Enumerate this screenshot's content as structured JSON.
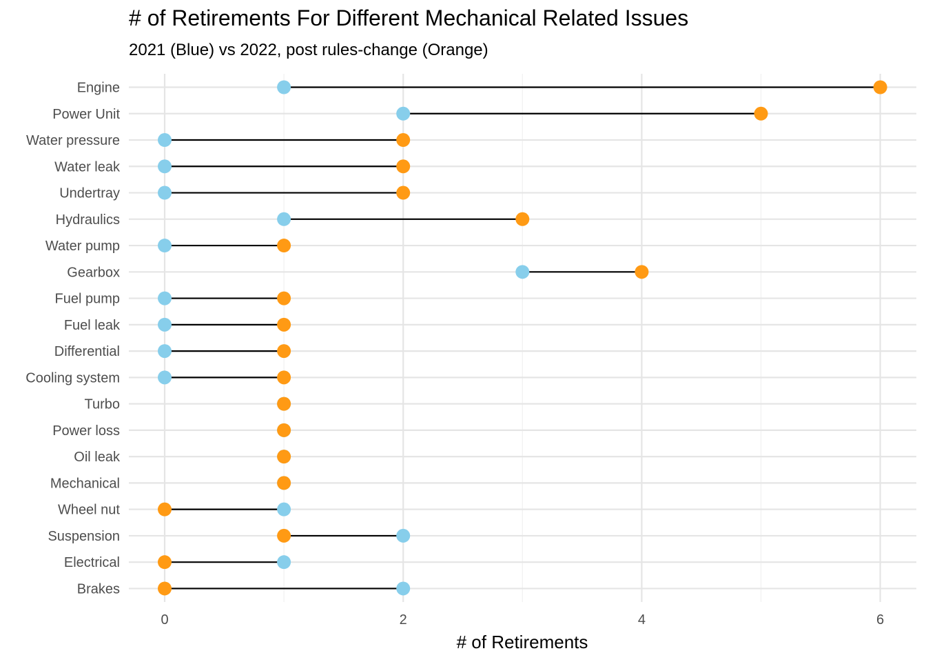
{
  "chart_data": {
    "type": "dumbbell",
    "title": "# of Retirements For Different Mechanical Related Issues",
    "subtitle": "2021 (Blue) vs 2022, post rules-change (Orange)",
    "xlabel": "# of Retirements",
    "ylabel": "",
    "xlim": [
      -0.3,
      6.3
    ],
    "x_ticks": [
      0,
      2,
      4,
      6
    ],
    "x_minor": [
      1,
      3,
      5
    ],
    "grid": true,
    "colors": {
      "y2021": "#87ceeb",
      "y2022": "#ff9a14",
      "segment": "#000000"
    },
    "categories": [
      "Engine",
      "Power Unit",
      "Water pressure",
      "Water leak",
      "Undertray",
      "Hydraulics",
      "Water pump",
      "Gearbox",
      "Fuel pump",
      "Fuel leak",
      "Differential",
      "Cooling system",
      "Turbo",
      "Power loss",
      "Oil leak",
      "Mechanical",
      "Wheel nut",
      "Suspension",
      "Electrical",
      "Brakes"
    ],
    "series": [
      {
        "name": "2021",
        "values": [
          1,
          2,
          0,
          0,
          0,
          1,
          0,
          3,
          0,
          0,
          0,
          0,
          1,
          1,
          1,
          1,
          1,
          2,
          1,
          2
        ]
      },
      {
        "name": "2022",
        "values": [
          6,
          5,
          2,
          2,
          2,
          3,
          1,
          4,
          1,
          1,
          1,
          1,
          1,
          1,
          1,
          1,
          0,
          1,
          0,
          0
        ]
      }
    ]
  }
}
